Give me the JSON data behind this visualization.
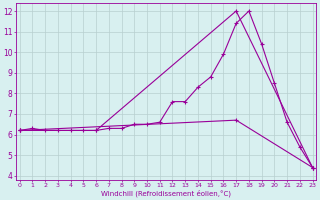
{
  "line1_x": [
    0,
    1,
    2,
    3,
    4,
    5,
    6,
    7,
    8,
    9,
    10,
    11,
    12,
    13,
    14,
    15,
    16,
    17,
    18,
    19,
    20,
    21,
    22,
    23
  ],
  "line1_y": [
    6.2,
    6.3,
    6.2,
    6.2,
    6.2,
    6.2,
    6.2,
    6.3,
    6.3,
    6.5,
    6.5,
    6.6,
    7.6,
    7.6,
    8.3,
    8.8,
    9.9,
    11.4,
    12.0,
    10.4,
    8.5,
    6.6,
    5.4,
    4.4
  ],
  "line2_x": [
    0,
    6,
    17,
    23
  ],
  "line2_y": [
    6.2,
    6.2,
    12.0,
    4.4
  ],
  "line3_x": [
    0,
    17,
    23
  ],
  "line3_y": [
    6.2,
    6.7,
    4.4
  ],
  "color": "#990099",
  "bg_color": "#d8f0f0",
  "grid_color": "#b8d0d0",
  "xlabel": "Windchill (Refroidissement éolien,°C)",
  "ylabel_ticks": [
    4,
    5,
    6,
    7,
    8,
    9,
    10,
    11,
    12
  ],
  "xticks": [
    0,
    1,
    2,
    3,
    4,
    5,
    6,
    7,
    8,
    9,
    10,
    11,
    12,
    13,
    14,
    15,
    16,
    17,
    18,
    19,
    20,
    21,
    22,
    23
  ],
  "xlim": [
    -0.3,
    23.3
  ],
  "ylim": [
    3.8,
    12.4
  ]
}
